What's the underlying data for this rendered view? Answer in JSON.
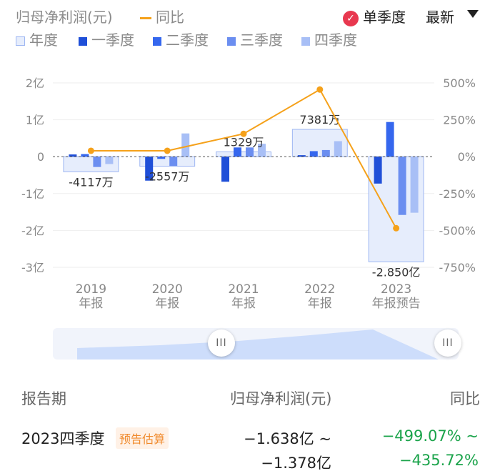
{
  "legend": {
    "metric": "归母净利润(元)",
    "yoy": "同比",
    "single_quarter": "单季度",
    "latest": "最新",
    "annual": "年度",
    "q1": "一季度",
    "q2": "二季度",
    "q3": "三季度",
    "q4": "四季度"
  },
  "colors": {
    "annual_fill": "#e6edfc",
    "annual_stroke": "#9db6f2",
    "q1": "#1f4fd8",
    "q2": "#3567ee",
    "q3": "#6b8ef0",
    "q4": "#a8bff6",
    "yoy": "#f5a11a",
    "check": "#e8384f"
  },
  "chart_data": {
    "type": "bar",
    "categories": [
      "2019\n年报",
      "2020\n年报",
      "2021\n年报",
      "2022\n年报",
      "2023\n年报预告"
    ],
    "left_axis": {
      "ticks": [
        "2亿",
        "1亿",
        "0",
        "-1亿",
        "-2亿",
        "-3亿"
      ],
      "ylim": [
        -3,
        2
      ],
      "unit": "亿"
    },
    "right_axis": {
      "ticks": [
        "500%",
        "250%",
        "0%",
        "-250%",
        "-500%",
        "-750%"
      ],
      "ylim": [
        -750,
        500
      ]
    },
    "annual": [
      -0.41,
      -0.26,
      0.13,
      0.74,
      -2.85
    ],
    "annual_labels": [
      "-4117万",
      "-2557万",
      "1329万",
      "7381万",
      "-2.850亿"
    ],
    "quarters": [
      [
        0.06,
        0.07,
        -0.28,
        -0.2
      ],
      [
        -0.65,
        -0.06,
        -0.25,
        0.63
      ],
      [
        -0.68,
        0.25,
        0.25,
        0.35
      ],
      [
        0.04,
        0.15,
        0.18,
        0.42
      ],
      [
        -0.73,
        0.94,
        -1.58,
        -1.52
      ]
    ],
    "yoy": [
      40,
      40,
      155,
      455,
      -485
    ],
    "series": [
      {
        "name": "年度"
      },
      {
        "name": "一季度"
      },
      {
        "name": "二季度"
      },
      {
        "name": "三季度"
      },
      {
        "name": "四季度"
      },
      {
        "name": "同比"
      }
    ]
  },
  "table": {
    "col_period": "报告期",
    "col_profit": "归母净利润(元)",
    "col_yoy": "同比",
    "row_period": "2023四季度",
    "row_tag": "预告估算",
    "row_profit_1": "−1.638亿 ~",
    "row_profit_2": "−1.378亿",
    "row_yoy_1": "−499.07% ~",
    "row_yoy_2": "−435.72%"
  },
  "slider": {
    "handle_glyph": "III"
  }
}
